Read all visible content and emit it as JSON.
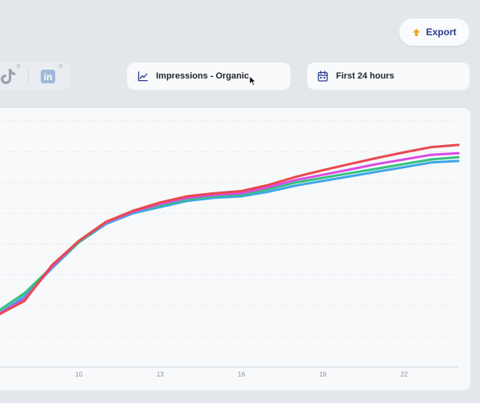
{
  "toolbar": {
    "export_label": "Export",
    "metric_label": "Impressions - Organic",
    "range_label": "First 24 hours"
  },
  "social": {
    "tiktok_count": "0",
    "linkedin_text": "in",
    "linkedin_count": "0"
  },
  "icons": {
    "export": "export-up-arrow-icon",
    "metric": "line-chart-icon",
    "range": "calendar-icon",
    "tiktok": "tiktok-icon",
    "linkedin": "linkedin-icon"
  },
  "colors": {
    "accent": "#2b3a8f",
    "export_arrow": "#f5a623",
    "series_blue": "#3ea6e8",
    "series_green": "#35c17e",
    "series_magenta": "#d94ce6",
    "series_red": "#e8494f"
  },
  "chart_data": {
    "type": "line",
    "x_ticks": [
      "10",
      "13",
      "16",
      "19",
      "22"
    ],
    "x": [
      7,
      8,
      9,
      10,
      11,
      12,
      13,
      14,
      15,
      16,
      17,
      18,
      19,
      20,
      21,
      22,
      23,
      24
    ],
    "xlim": [
      6.8,
      24
    ],
    "ylim": [
      0,
      8
    ],
    "grid": true,
    "series": [
      {
        "color": "#3ea6e8",
        "values": [
          1.7,
          2.3,
          3.2,
          4.05,
          4.65,
          5.0,
          5.2,
          5.4,
          5.5,
          5.55,
          5.7,
          5.9,
          6.05,
          6.2,
          6.35,
          6.5,
          6.65,
          6.7
        ]
      },
      {
        "color": "#35c17e",
        "values": [
          1.8,
          2.4,
          3.25,
          4.05,
          4.7,
          5.05,
          5.25,
          5.45,
          5.55,
          5.6,
          5.78,
          6.0,
          6.15,
          6.3,
          6.45,
          6.6,
          6.75,
          6.82
        ]
      },
      {
        "color": "#d94ce6",
        "values": [
          1.7,
          2.2,
          3.25,
          4.1,
          4.7,
          5.05,
          5.3,
          5.5,
          5.6,
          5.65,
          5.85,
          6.08,
          6.25,
          6.42,
          6.6,
          6.75,
          6.9,
          6.95
        ]
      },
      {
        "color": "#e8494f",
        "values": [
          1.68,
          2.15,
          3.3,
          4.1,
          4.72,
          5.08,
          5.35,
          5.55,
          5.65,
          5.72,
          5.92,
          6.18,
          6.4,
          6.6,
          6.8,
          6.98,
          7.15,
          7.22
        ]
      }
    ]
  }
}
